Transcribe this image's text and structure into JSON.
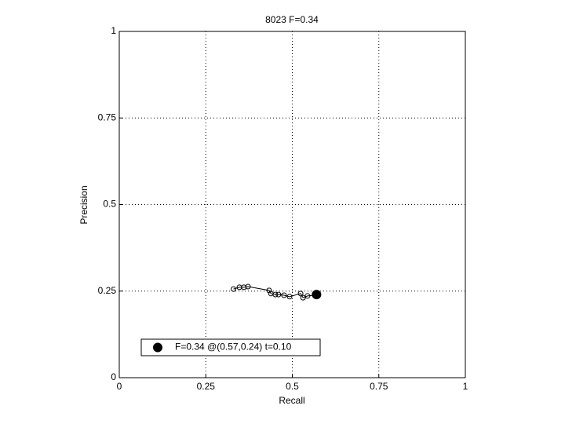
{
  "chart_data": {
    "type": "line",
    "title": "8023 F=0.34",
    "x_label": "Recall",
    "y_label": "Precision",
    "xlim": [
      0,
      1
    ],
    "ylim": [
      0,
      1
    ],
    "xticks": [
      0,
      0.25,
      0.5,
      0.75,
      1
    ],
    "yticks": [
      0,
      0.25,
      0.5,
      0.75,
      1
    ],
    "grid": true,
    "legend": "lower left",
    "series": [
      {
        "style": "line",
        "color": "#000000",
        "x": [
          0.33,
          0.347,
          0.36,
          0.372,
          0.433,
          0.438,
          0.451,
          0.46,
          0.476,
          0.492,
          0.524,
          0.531,
          0.544,
          0.565
        ],
        "values": [
          0.256,
          0.261,
          0.261,
          0.263,
          0.252,
          0.243,
          0.24,
          0.24,
          0.238,
          0.234,
          0.243,
          0.231,
          0.236,
          0.238
        ]
      },
      {
        "style": "point",
        "name": "F=0.34 @(0.57,0.24) t=0.10",
        "color": "#000000",
        "x": [
          0.57
        ],
        "values": [
          0.24
        ]
      }
    ]
  }
}
